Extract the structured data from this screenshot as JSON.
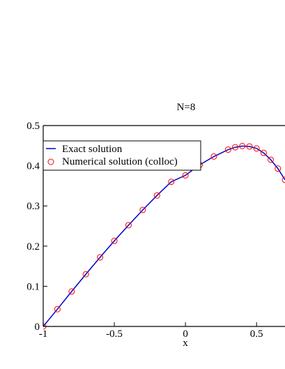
{
  "chart_data": {
    "type": "line",
    "title": "N=8",
    "xlabel": "x",
    "ylabel": "",
    "xlim": [
      -1,
      0.7
    ],
    "ylim": [
      0,
      0.5
    ],
    "x_ticks": [
      "-1",
      "-0.5",
      "0",
      "0.5"
    ],
    "y_ticks": [
      "0",
      "0.1",
      "0.2",
      "0.3",
      "0.4",
      "0.5"
    ],
    "grid": false,
    "legend_position": "top-left",
    "series": [
      {
        "name": "Exact solution",
        "style": "line",
        "color": "#0000cc",
        "x": [
          -1.0,
          -0.9,
          -0.8,
          -0.7,
          -0.6,
          -0.5,
          -0.4,
          -0.3,
          -0.2,
          -0.1,
          0.0,
          0.1,
          0.2,
          0.3,
          0.35,
          0.4,
          0.45,
          0.5,
          0.55,
          0.6,
          0.65,
          0.7
        ],
        "y": [
          0.0,
          0.043,
          0.087,
          0.13,
          0.172,
          0.213,
          0.252,
          0.29,
          0.326,
          0.36,
          0.376,
          0.402,
          0.423,
          0.44,
          0.446,
          0.449,
          0.448,
          0.443,
          0.432,
          0.415,
          0.393,
          0.365
        ]
      },
      {
        "name": "Numerical solution (colloc)",
        "style": "markers",
        "marker": "open-circle",
        "color": "#ff0000",
        "x": [
          -1.0,
          -0.9,
          -0.8,
          -0.7,
          -0.6,
          -0.5,
          -0.4,
          -0.3,
          -0.2,
          -0.1,
          0.0,
          0.1,
          0.2,
          0.3,
          0.35,
          0.4,
          0.45,
          0.5,
          0.55,
          0.6,
          0.65,
          0.7
        ],
        "y": [
          0.0,
          0.043,
          0.087,
          0.13,
          0.172,
          0.213,
          0.252,
          0.29,
          0.326,
          0.36,
          0.376,
          0.402,
          0.423,
          0.44,
          0.446,
          0.449,
          0.448,
          0.443,
          0.432,
          0.415,
          0.393,
          0.365
        ]
      }
    ]
  }
}
